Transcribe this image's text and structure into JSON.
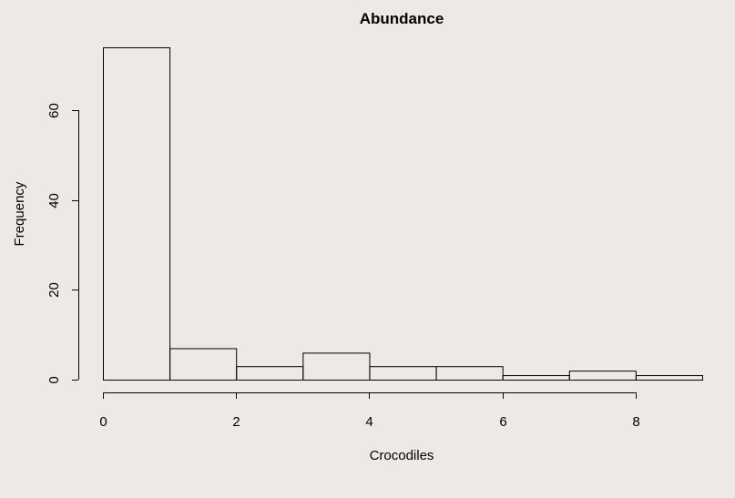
{
  "chart_data": {
    "type": "bar",
    "title": "Abundance",
    "xlabel": "Crocodiles",
    "ylabel": "Frequency",
    "bins": [
      {
        "start": 0,
        "end": 1,
        "count": 74
      },
      {
        "start": 1,
        "end": 2,
        "count": 7
      },
      {
        "start": 2,
        "end": 3,
        "count": 3
      },
      {
        "start": 3,
        "end": 4,
        "count": 6
      },
      {
        "start": 4,
        "end": 5,
        "count": 3
      },
      {
        "start": 5,
        "end": 6,
        "count": 3
      },
      {
        "start": 6,
        "end": 7,
        "count": 1
      },
      {
        "start": 7,
        "end": 8,
        "count": 2
      },
      {
        "start": 8,
        "end": 9,
        "count": 1
      }
    ],
    "xlim": [
      0,
      9
    ],
    "ylim": [
      0,
      74
    ],
    "x_ticks": [
      0,
      2,
      4,
      6,
      8
    ],
    "y_ticks": [
      0,
      20,
      40,
      60
    ],
    "grid": false,
    "legend": "none"
  }
}
